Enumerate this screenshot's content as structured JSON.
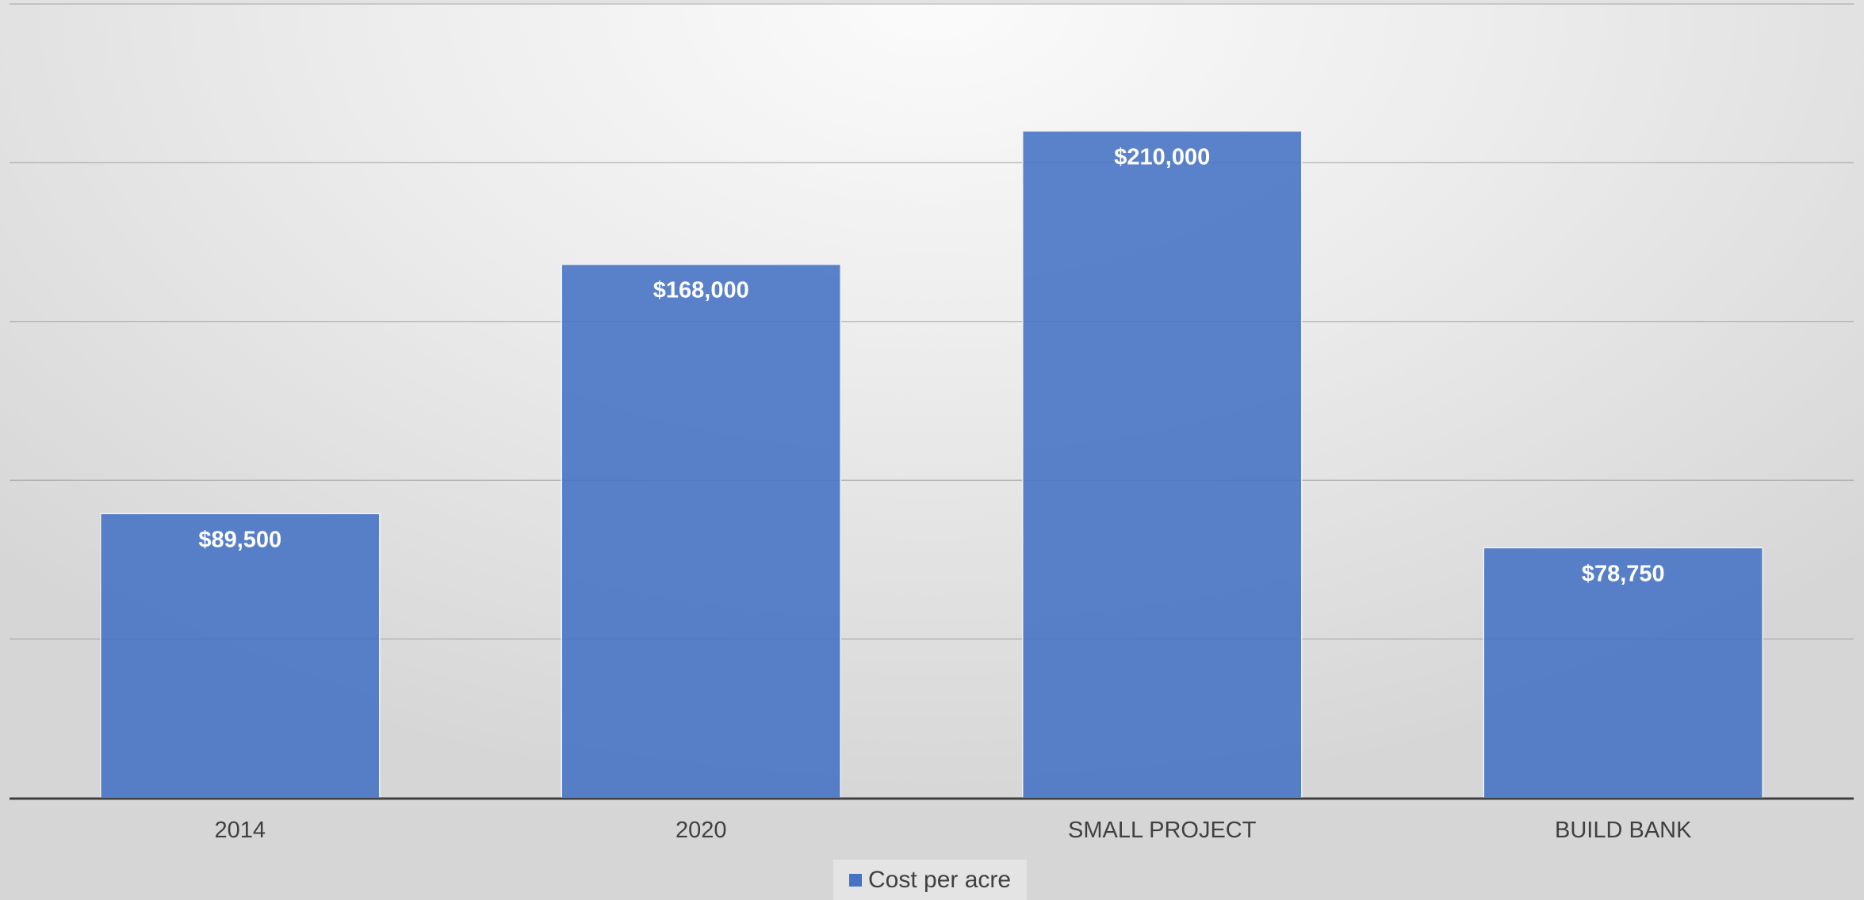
{
  "chart_data": {
    "type": "bar",
    "categories": [
      "2014",
      "2020",
      "SMALL PROJECT",
      "BUILD BANK"
    ],
    "series": [
      {
        "name": "Cost per acre",
        "values": [
          89500,
          168000,
          210000,
          78750
        ],
        "labels": [
          "$89,500",
          "$168,000",
          "$210,000",
          "$78,750"
        ]
      }
    ],
    "ylim": [
      0,
      250000
    ],
    "y_gridline_step": 50000,
    "grid": true,
    "y_tick_labels_shown": false,
    "legend": {
      "position": "bottom",
      "entries": [
        "Cost per acre"
      ]
    },
    "colors": {
      "bar": "#4472c4",
      "bar_border": "#f2f2f2",
      "gridline": "#9a9a9a",
      "axis": "#404040",
      "data_label": "#ffffff"
    },
    "title": "",
    "xlabel": "",
    "ylabel": ""
  }
}
